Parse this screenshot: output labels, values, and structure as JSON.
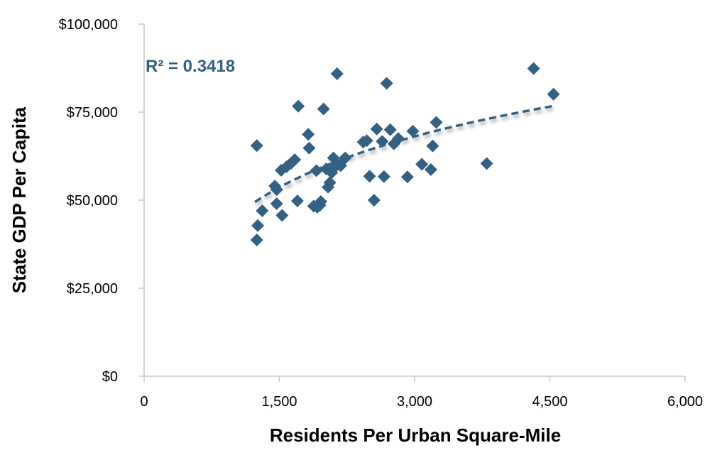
{
  "chart_data": {
    "type": "scatter",
    "xlabel": "Residents Per Urban Square-Mile",
    "ylabel": "State GDP Per Capita",
    "xlim": [
      0,
      6000
    ],
    "ylim": [
      0,
      100000
    ],
    "x_ticks": [
      0,
      1500,
      3000,
      4500,
      6000
    ],
    "x_tick_labels": [
      "0",
      "1,500",
      "3,000",
      "4,500",
      "6,000"
    ],
    "y_ticks": [
      0,
      25000,
      50000,
      75000,
      100000
    ],
    "y_tick_labels": [
      "$0",
      "$25,000",
      "$50,000",
      "$75,000",
      "$100,000"
    ],
    "grid": false,
    "legend": "none",
    "marker": "diamond",
    "marker_color": "#336183",
    "trendline": {
      "type": "logarithmic",
      "style": "dashed",
      "color": "#336183",
      "x_start": 1230,
      "x_end": 4550,
      "y_start": 49500,
      "y_end": 76800,
      "r_squared_label": "R² = 0.3418"
    },
    "points": [
      {
        "x": 1250,
        "y": 65500
      },
      {
        "x": 1260,
        "y": 42800
      },
      {
        "x": 1250,
        "y": 38700
      },
      {
        "x": 1310,
        "y": 47000
      },
      {
        "x": 1450,
        "y": 54000
      },
      {
        "x": 1470,
        "y": 49000
      },
      {
        "x": 1470,
        "y": 53000
      },
      {
        "x": 1520,
        "y": 58500
      },
      {
        "x": 1530,
        "y": 45700
      },
      {
        "x": 1580,
        "y": 59500
      },
      {
        "x": 1630,
        "y": 60500
      },
      {
        "x": 1670,
        "y": 61500
      },
      {
        "x": 1700,
        "y": 49800
      },
      {
        "x": 1710,
        "y": 76700
      },
      {
        "x": 1820,
        "y": 68700
      },
      {
        "x": 1830,
        "y": 64800
      },
      {
        "x": 1880,
        "y": 48300
      },
      {
        "x": 1910,
        "y": 58400
      },
      {
        "x": 1920,
        "y": 48000
      },
      {
        "x": 1950,
        "y": 48600
      },
      {
        "x": 1960,
        "y": 49600
      },
      {
        "x": 1990,
        "y": 75900
      },
      {
        "x": 2020,
        "y": 58900
      },
      {
        "x": 2040,
        "y": 53700
      },
      {
        "x": 2060,
        "y": 55000
      },
      {
        "x": 2080,
        "y": 57800
      },
      {
        "x": 2100,
        "y": 62000
      },
      {
        "x": 2120,
        "y": 59500
      },
      {
        "x": 2140,
        "y": 85900
      },
      {
        "x": 2180,
        "y": 59800
      },
      {
        "x": 2230,
        "y": 62000
      },
      {
        "x": 2430,
        "y": 66500
      },
      {
        "x": 2470,
        "y": 66900
      },
      {
        "x": 2500,
        "y": 56800
      },
      {
        "x": 2550,
        "y": 50000
      },
      {
        "x": 2580,
        "y": 70200
      },
      {
        "x": 2640,
        "y": 66700
      },
      {
        "x": 2660,
        "y": 56700
      },
      {
        "x": 2690,
        "y": 83200
      },
      {
        "x": 2730,
        "y": 70000
      },
      {
        "x": 2770,
        "y": 66000
      },
      {
        "x": 2820,
        "y": 67500
      },
      {
        "x": 2920,
        "y": 56600
      },
      {
        "x": 2980,
        "y": 69600
      },
      {
        "x": 3080,
        "y": 60200
      },
      {
        "x": 3180,
        "y": 58700
      },
      {
        "x": 3200,
        "y": 65400
      },
      {
        "x": 3240,
        "y": 72100
      },
      {
        "x": 3800,
        "y": 60400
      },
      {
        "x": 4320,
        "y": 87400
      },
      {
        "x": 4540,
        "y": 80100
      }
    ]
  }
}
